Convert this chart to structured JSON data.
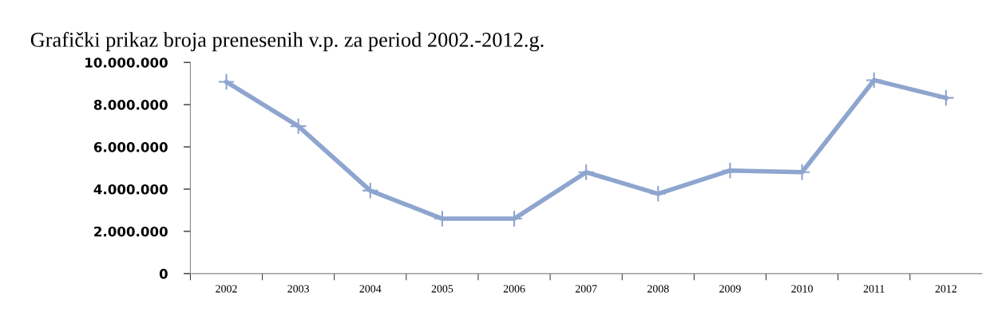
{
  "chart_data": {
    "type": "line",
    "title": "Grafički prikaz broja prenesenih v.p. za period 2002.-2012.g.",
    "categories": [
      "2002",
      "2003",
      "2004",
      "2005",
      "2006",
      "2007",
      "2008",
      "2009",
      "2010",
      "2011",
      "2012"
    ],
    "series": [
      {
        "color": "#8ea5cf",
        "values": [
          9080000,
          6980000,
          3930000,
          2600000,
          2600000,
          4800000,
          3780000,
          4880000,
          4800000,
          9160000,
          8320000
        ]
      }
    ],
    "ylim": [
      0,
      10000000
    ],
    "yticks": [
      {
        "value": 0,
        "label": "0"
      },
      {
        "value": 2000000,
        "label": "2.000.000"
      },
      {
        "value": 4000000,
        "label": "4.000.000"
      },
      {
        "value": 6000000,
        "label": "6.000.000"
      },
      {
        "value": 8000000,
        "label": "8.000.000"
      },
      {
        "value": 10000000,
        "label": "10.000.000"
      }
    ],
    "grid": false,
    "legend": false,
    "marker": "cross",
    "line_style": "solid"
  }
}
